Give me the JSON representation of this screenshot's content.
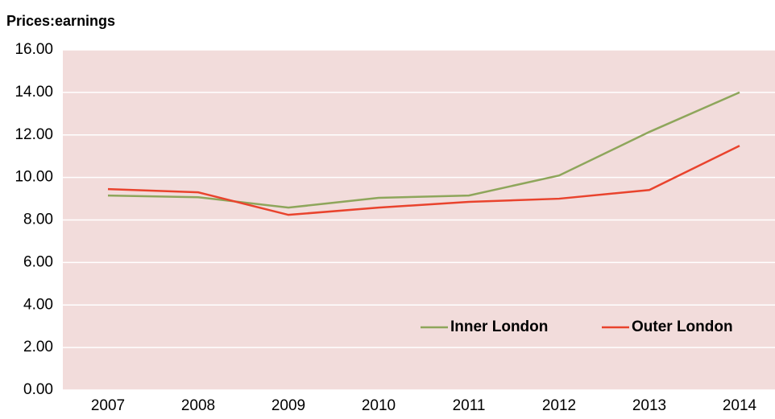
{
  "chart_data": {
    "type": "line",
    "title": "Prices:earnings",
    "categories": [
      "2007",
      "2008",
      "2009",
      "2010",
      "2011",
      "2012",
      "2013",
      "2014"
    ],
    "series": [
      {
        "name": "Inner London",
        "color": "#8ea65b",
        "values": [
          9.15,
          9.07,
          8.58,
          9.04,
          9.15,
          10.09,
          12.14,
          14.0
        ]
      },
      {
        "name": "Outer London",
        "color": "#e9432d",
        "values": [
          9.45,
          9.3,
          8.24,
          8.58,
          8.85,
          9.0,
          9.41,
          11.49
        ]
      }
    ],
    "ylim": [
      0,
      16
    ],
    "yticks": [
      {
        "value": 0,
        "label": "0.00"
      },
      {
        "value": 2,
        "label": "2.00"
      },
      {
        "value": 4,
        "label": "4.00"
      },
      {
        "value": 6,
        "label": "6.00"
      },
      {
        "value": 8,
        "label": "8.00"
      },
      {
        "value": 10,
        "label": "10.00"
      },
      {
        "value": 12,
        "label": "12.00"
      },
      {
        "value": 14,
        "label": "14.00"
      },
      {
        "value": 16,
        "label": "16.00"
      }
    ],
    "grid": true,
    "legend": "lower right"
  }
}
